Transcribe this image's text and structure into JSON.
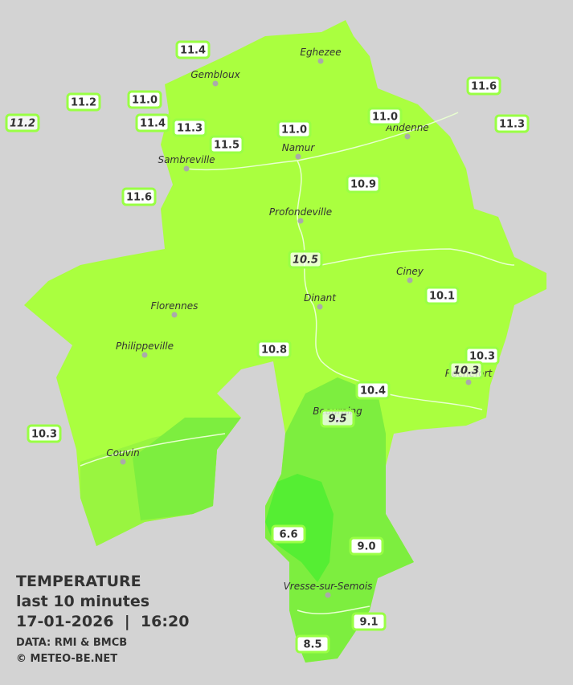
{
  "legend": {
    "title": "TEMPERATURE",
    "period": "last 10 minutes",
    "datetime": "17-01-2026  |  16:20",
    "source": "DATA: RMI & BMCB",
    "copyright": "© METEO-BE.NET"
  },
  "cities": [
    "Eghezee",
    "Gembloux",
    "Andenne",
    "Namur",
    "Sambreville",
    "Profondeville",
    "Ciney",
    "Dinant",
    "Florennes",
    "Philippeville",
    "Beauraing",
    "Rochefort",
    "Couvin",
    "Vresse-sur-Semois"
  ],
  "stations": [
    "11.4",
    "11.2",
    "11.2",
    "11.0",
    "11.4",
    "11.3",
    "11.5",
    "11.0",
    "11.0",
    "11.6",
    "11.3",
    "11.6",
    "10.9",
    "10.5",
    "10.1",
    "10.8",
    "10.3",
    "10.3",
    "10.4",
    "9.5",
    "10.3",
    "6.6",
    "9.0",
    "9.1",
    "8.5"
  ]
}
